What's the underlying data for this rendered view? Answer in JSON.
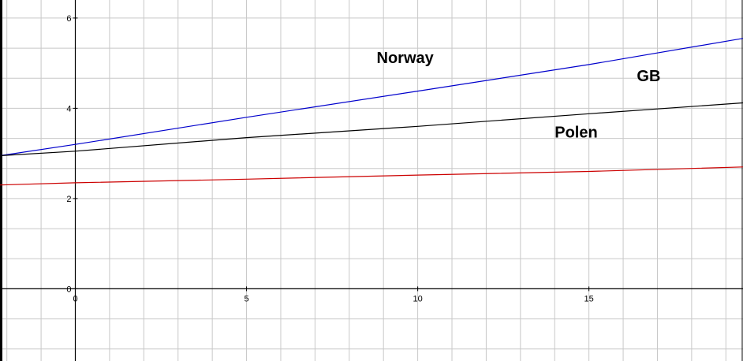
{
  "chart_data": {
    "type": "line",
    "title": "",
    "xlabel": "",
    "ylabel": "",
    "xlim": [
      -2.2,
      19.5
    ],
    "ylim": [
      -1.6,
      6.4
    ],
    "grid": true,
    "x_ticks": [
      {
        "value": 0,
        "label": "0"
      },
      {
        "value": 5,
        "label": "5"
      },
      {
        "value": 10,
        "label": "10"
      },
      {
        "value": 15,
        "label": "15"
      }
    ],
    "y_ticks": [
      {
        "value": 0,
        "label": "0"
      },
      {
        "value": 2,
        "label": "2"
      },
      {
        "value": 4,
        "label": "4"
      },
      {
        "value": 6,
        "label": "6"
      }
    ],
    "series": [
      {
        "color": "#0000cc",
        "x": [
          -2.2,
          0,
          5,
          10,
          15,
          19.5
        ],
        "y": [
          2.95,
          3.2,
          3.8,
          4.38,
          4.97,
          5.55
        ]
      },
      {
        "color": "#000000",
        "x": [
          -2.2,
          0,
          5,
          10,
          15,
          19.5
        ],
        "y": [
          2.95,
          3.05,
          3.35,
          3.6,
          3.88,
          4.12
        ]
      },
      {
        "color": "#cc0000",
        "x": [
          -2.2,
          0,
          5,
          10,
          15,
          19.5
        ],
        "y": [
          2.3,
          2.35,
          2.43,
          2.52,
          2.6,
          2.7
        ]
      }
    ],
    "annotations": [
      {
        "text": "Norway",
        "x": 8.8,
        "y": 5.0
      },
      {
        "text": "GB",
        "x": 16.4,
        "y": 4.6
      },
      {
        "text": "Polen",
        "x": 14.0,
        "y": 3.35
      }
    ]
  }
}
